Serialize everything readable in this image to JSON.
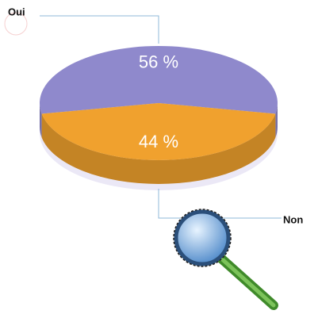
{
  "chart_data": {
    "type": "pie",
    "categories": [
      "Oui",
      "Non"
    ],
    "values": [
      56,
      44
    ],
    "value_labels": [
      "56 %",
      "44 %"
    ],
    "colors": [
      "#8f89cc",
      "#f0a12e"
    ]
  }
}
